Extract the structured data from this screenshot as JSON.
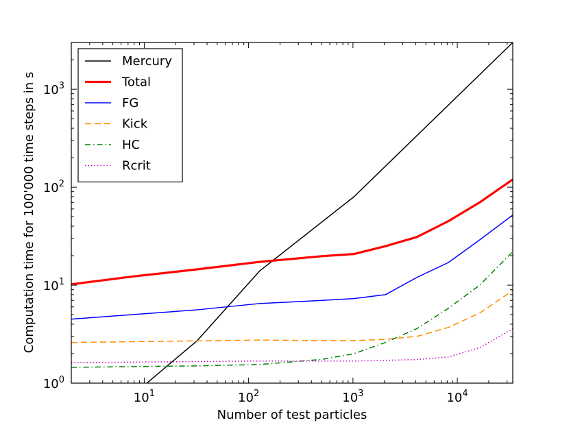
{
  "chart_data": {
    "type": "line",
    "xscale": "log",
    "yscale": "log",
    "xlim": [
      2,
      34000
    ],
    "ylim": [
      1,
      3000
    ],
    "xlabel": "Number of test particles",
    "ylabel": "Computation time for 100'000 time steps in s",
    "grid": false,
    "legend_position": "top-left",
    "x_ticks": [
      {
        "base": "10",
        "exp": "1"
      },
      {
        "base": "10",
        "exp": "2"
      },
      {
        "base": "10",
        "exp": "3"
      },
      {
        "base": "10",
        "exp": "4"
      }
    ],
    "y_ticks": [
      {
        "base": "10",
        "exp": "0"
      },
      {
        "base": "10",
        "exp": "1"
      },
      {
        "base": "10",
        "exp": "2"
      },
      {
        "base": "10",
        "exp": "3"
      }
    ],
    "series": [
      {
        "name": "Mercury",
        "color": "#000000",
        "style": "solid",
        "width": 1.5,
        "x": [
          10,
          32,
          128,
          1024,
          34000
        ],
        "y": [
          0.95,
          2.7,
          14,
          80,
          3000
        ]
      },
      {
        "name": "Total",
        "color": "#ff0000",
        "style": "solid",
        "width": 3.2,
        "x": [
          2,
          8,
          32,
          128,
          512,
          1024,
          2048,
          4096,
          8192,
          16384,
          34000
        ],
        "y": [
          10.2,
          12.3,
          14.5,
          17.3,
          19.8,
          20.8,
          25,
          31,
          45,
          70,
          120
        ]
      },
      {
        "name": "FG",
        "color": "#0000ff",
        "style": "solid",
        "width": 1.5,
        "x": [
          2,
          32,
          128,
          512,
          1024,
          2048,
          4096,
          8192,
          16384,
          34000
        ],
        "y": [
          4.5,
          5.6,
          6.5,
          7.0,
          7.3,
          8.0,
          12.0,
          17.0,
          29.0,
          52.0
        ]
      },
      {
        "name": "Kick",
        "color": "#ff8c00",
        "style": "dashed",
        "width": 1.5,
        "x": [
          2,
          32,
          128,
          512,
          1024,
          2048,
          4096,
          8192,
          16384,
          34000
        ],
        "y": [
          2.6,
          2.7,
          2.75,
          2.72,
          2.72,
          2.8,
          3.0,
          3.7,
          5.2,
          8.8
        ]
      },
      {
        "name": "HC",
        "color": "#008000",
        "style": "dashdot",
        "width": 1.5,
        "x": [
          2,
          32,
          128,
          512,
          1024,
          2048,
          4096,
          8192,
          16384,
          34000
        ],
        "y": [
          1.45,
          1.5,
          1.55,
          1.75,
          2.0,
          2.6,
          3.6,
          5.8,
          10.0,
          22.0
        ]
      },
      {
        "name": "Rcrit",
        "color": "#bf00bf",
        "style": "dotted",
        "width": 1.5,
        "x": [
          2,
          32,
          128,
          512,
          1024,
          2048,
          4096,
          8192,
          16384,
          34000
        ],
        "y": [
          1.62,
          1.66,
          1.68,
          1.68,
          1.68,
          1.71,
          1.74,
          1.85,
          2.3,
          3.6
        ]
      }
    ]
  }
}
